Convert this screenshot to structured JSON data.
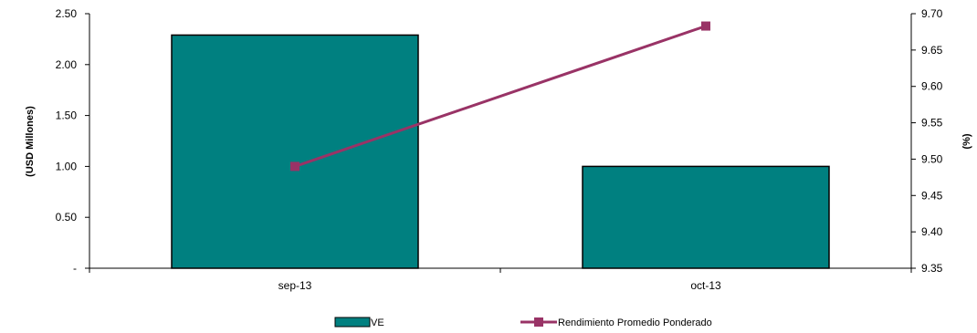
{
  "chart_data": {
    "type": "bar+line",
    "categories": [
      "sep-13",
      "oct-13"
    ],
    "series": [
      {
        "name": "VE",
        "type": "bar",
        "axis": "left",
        "values": [
          2.29,
          1.0
        ]
      },
      {
        "name": "Rendimiento Promedio Ponderado",
        "type": "line",
        "axis": "right",
        "values": [
          9.49,
          9.683
        ]
      }
    ],
    "y_left": {
      "label": "(USD Millones)",
      "ylim": [
        0,
        2.5
      ],
      "ticks": [
        0,
        0.5,
        1.0,
        1.5,
        2.0,
        2.5
      ],
      "tick_labels": [
        "-",
        "0.50",
        "1.00",
        "1.50",
        "2.00",
        "2.50"
      ]
    },
    "y_right": {
      "label": "(%)",
      "ylim": [
        9.35,
        9.7
      ],
      "ticks": [
        9.35,
        9.4,
        9.45,
        9.5,
        9.55,
        9.6,
        9.65,
        9.7
      ],
      "tick_labels": [
        "9.35",
        "9.40",
        "9.45",
        "9.50",
        "9.55",
        "9.60",
        "9.65",
        "9.70"
      ]
    },
    "grid": false,
    "legend_position": "bottom",
    "colors": {
      "bar": "#008080",
      "line": "#993366",
      "axis": "#000000"
    }
  }
}
